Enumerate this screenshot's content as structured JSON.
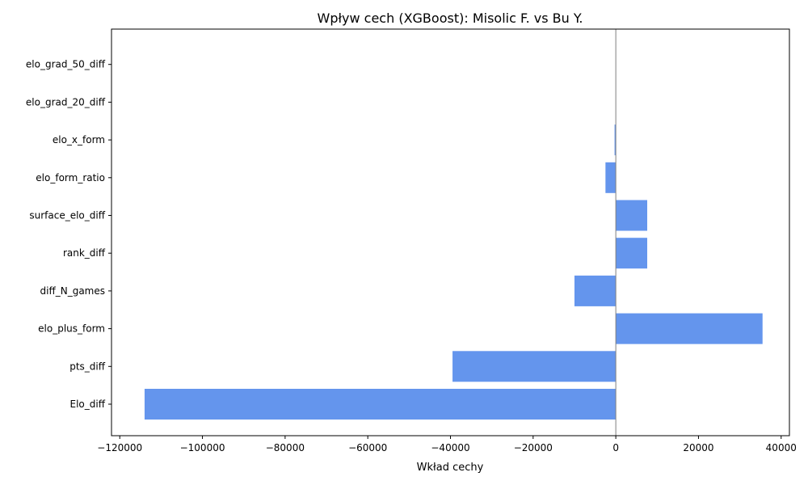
{
  "chart_data": {
    "type": "bar",
    "orientation": "horizontal",
    "title": "Wpływ cech (XGBoost): Misolic F. vs Bu Y.",
    "xlabel": "Wkład cechy",
    "ylabel": "",
    "xlim": [
      -122000,
      42000
    ],
    "xticks": [
      -120000,
      -100000,
      -80000,
      -60000,
      -40000,
      -20000,
      0,
      20000,
      40000
    ],
    "xtick_labels": [
      "−120000",
      "−100000",
      "−80000",
      "−60000",
      "−40000",
      "−20000",
      "0",
      "20000",
      "40000"
    ],
    "categories": [
      "Elo_diff",
      "pts_diff",
      "elo_plus_form",
      "diff_N_games",
      "rank_diff",
      "surface_elo_diff",
      "elo_form_ratio",
      "elo_x_form",
      "elo_grad_20_diff",
      "elo_grad_50_diff"
    ],
    "values": [
      -114000,
      -39500,
      35500,
      -10000,
      7600,
      7600,
      -2500,
      -300,
      0,
      0
    ],
    "bar_color": "#6495ED",
    "zero_line": true,
    "grid": false
  }
}
